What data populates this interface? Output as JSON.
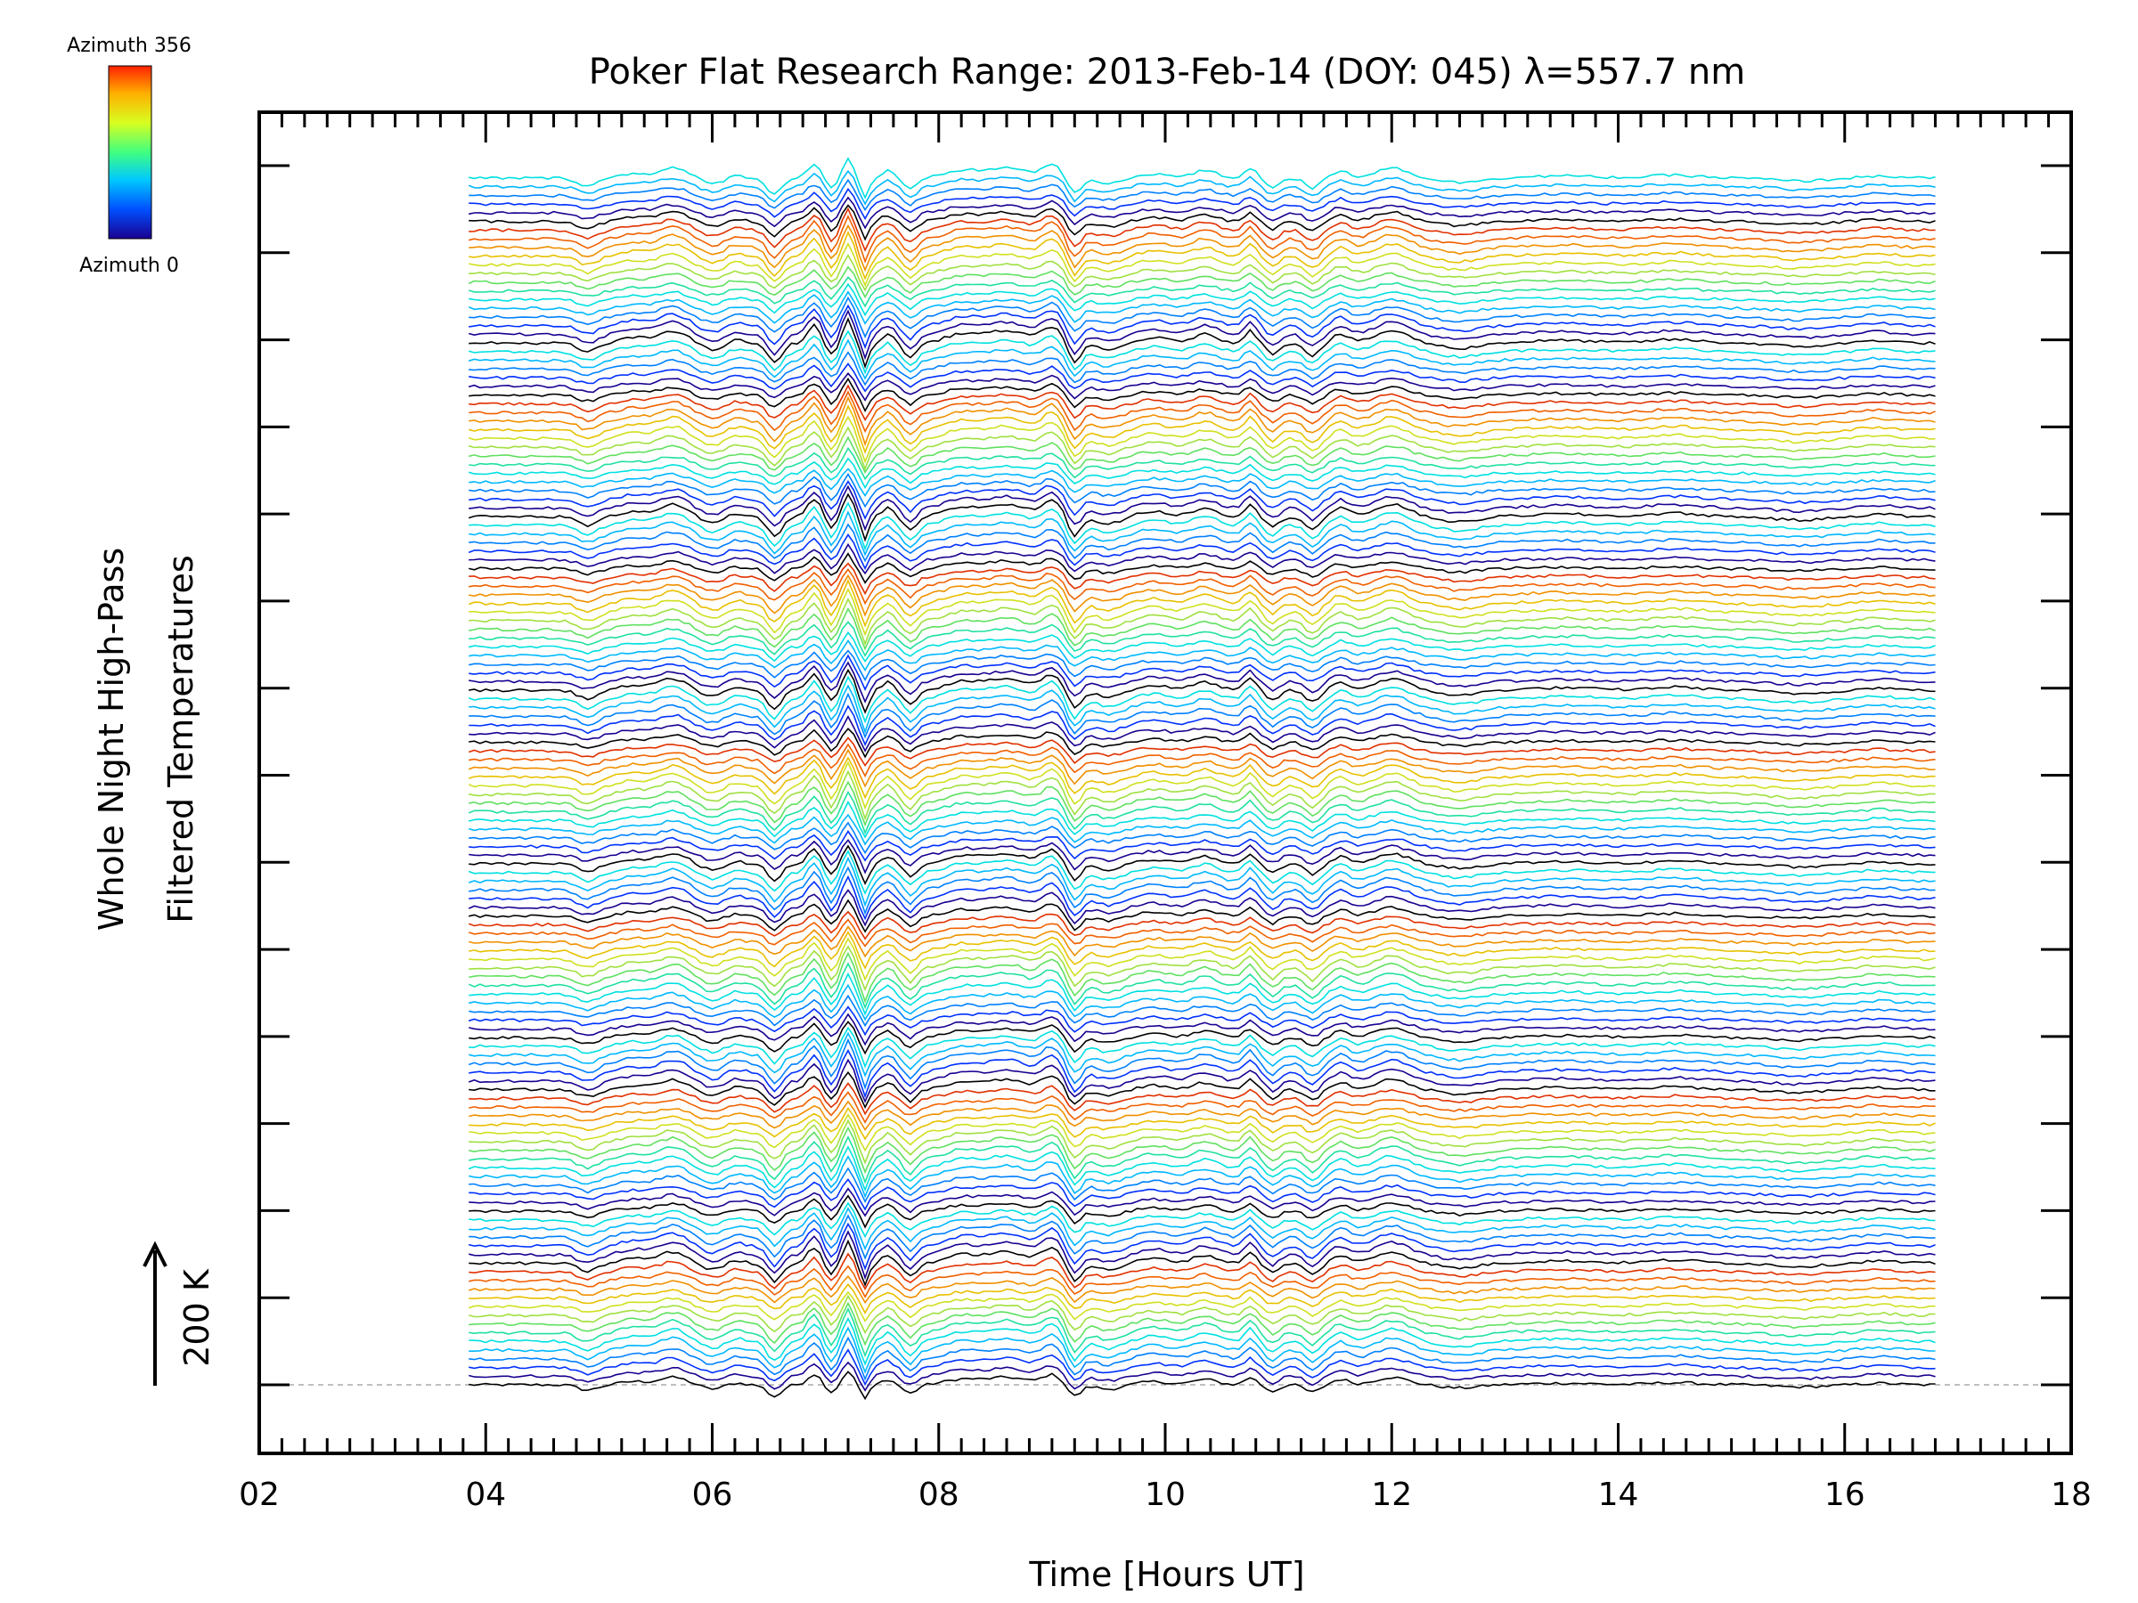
{
  "chart_data": {
    "type": "line",
    "title": "Poker Flat Research Range: 2013-Feb-14 (DOY: 045) λ=557.7 nm",
    "xlabel": "Time [Hours UT]",
    "ylabel_line1": "Whole Night High-Pass",
    "ylabel_line2": "Filtered Temperatures",
    "xlim": [
      2,
      18
    ],
    "x_tick_labels": [
      "02",
      "04",
      "06",
      "08",
      "10",
      "12",
      "14",
      "16",
      "18"
    ],
    "x_ticks": [
      2,
      4,
      6,
      8,
      10,
      12,
      14,
      16,
      18
    ],
    "data_start_hour": 3.85,
    "data_end_hour": 16.8,
    "scale_bar_label": "200 K",
    "colorbar": {
      "label_max": "Azimuth 356",
      "label_min": "Azimuth 0",
      "colormap": [
        "#1a0090",
        "#0050ff",
        "#00c8ff",
        "#40ff80",
        "#d8ff20",
        "#ffb000",
        "#ff2000"
      ]
    },
    "stack_blocks": 7,
    "traces_per_block": 20,
    "series_description": "Stacked high-pass filtered temperature traces, one per azimuth, offset vertically",
    "trace_colors": [
      "#000000",
      "#1a0090",
      "#0030ff",
      "#0080ff",
      "#00b8ff",
      "#00e0e0",
      "#20e0a0",
      "#60e060",
      "#a0e040",
      "#d0e020",
      "#e8c000",
      "#f09000",
      "#f06000",
      "#e03000"
    ],
    "baseline_color": "#aaaaaa"
  }
}
